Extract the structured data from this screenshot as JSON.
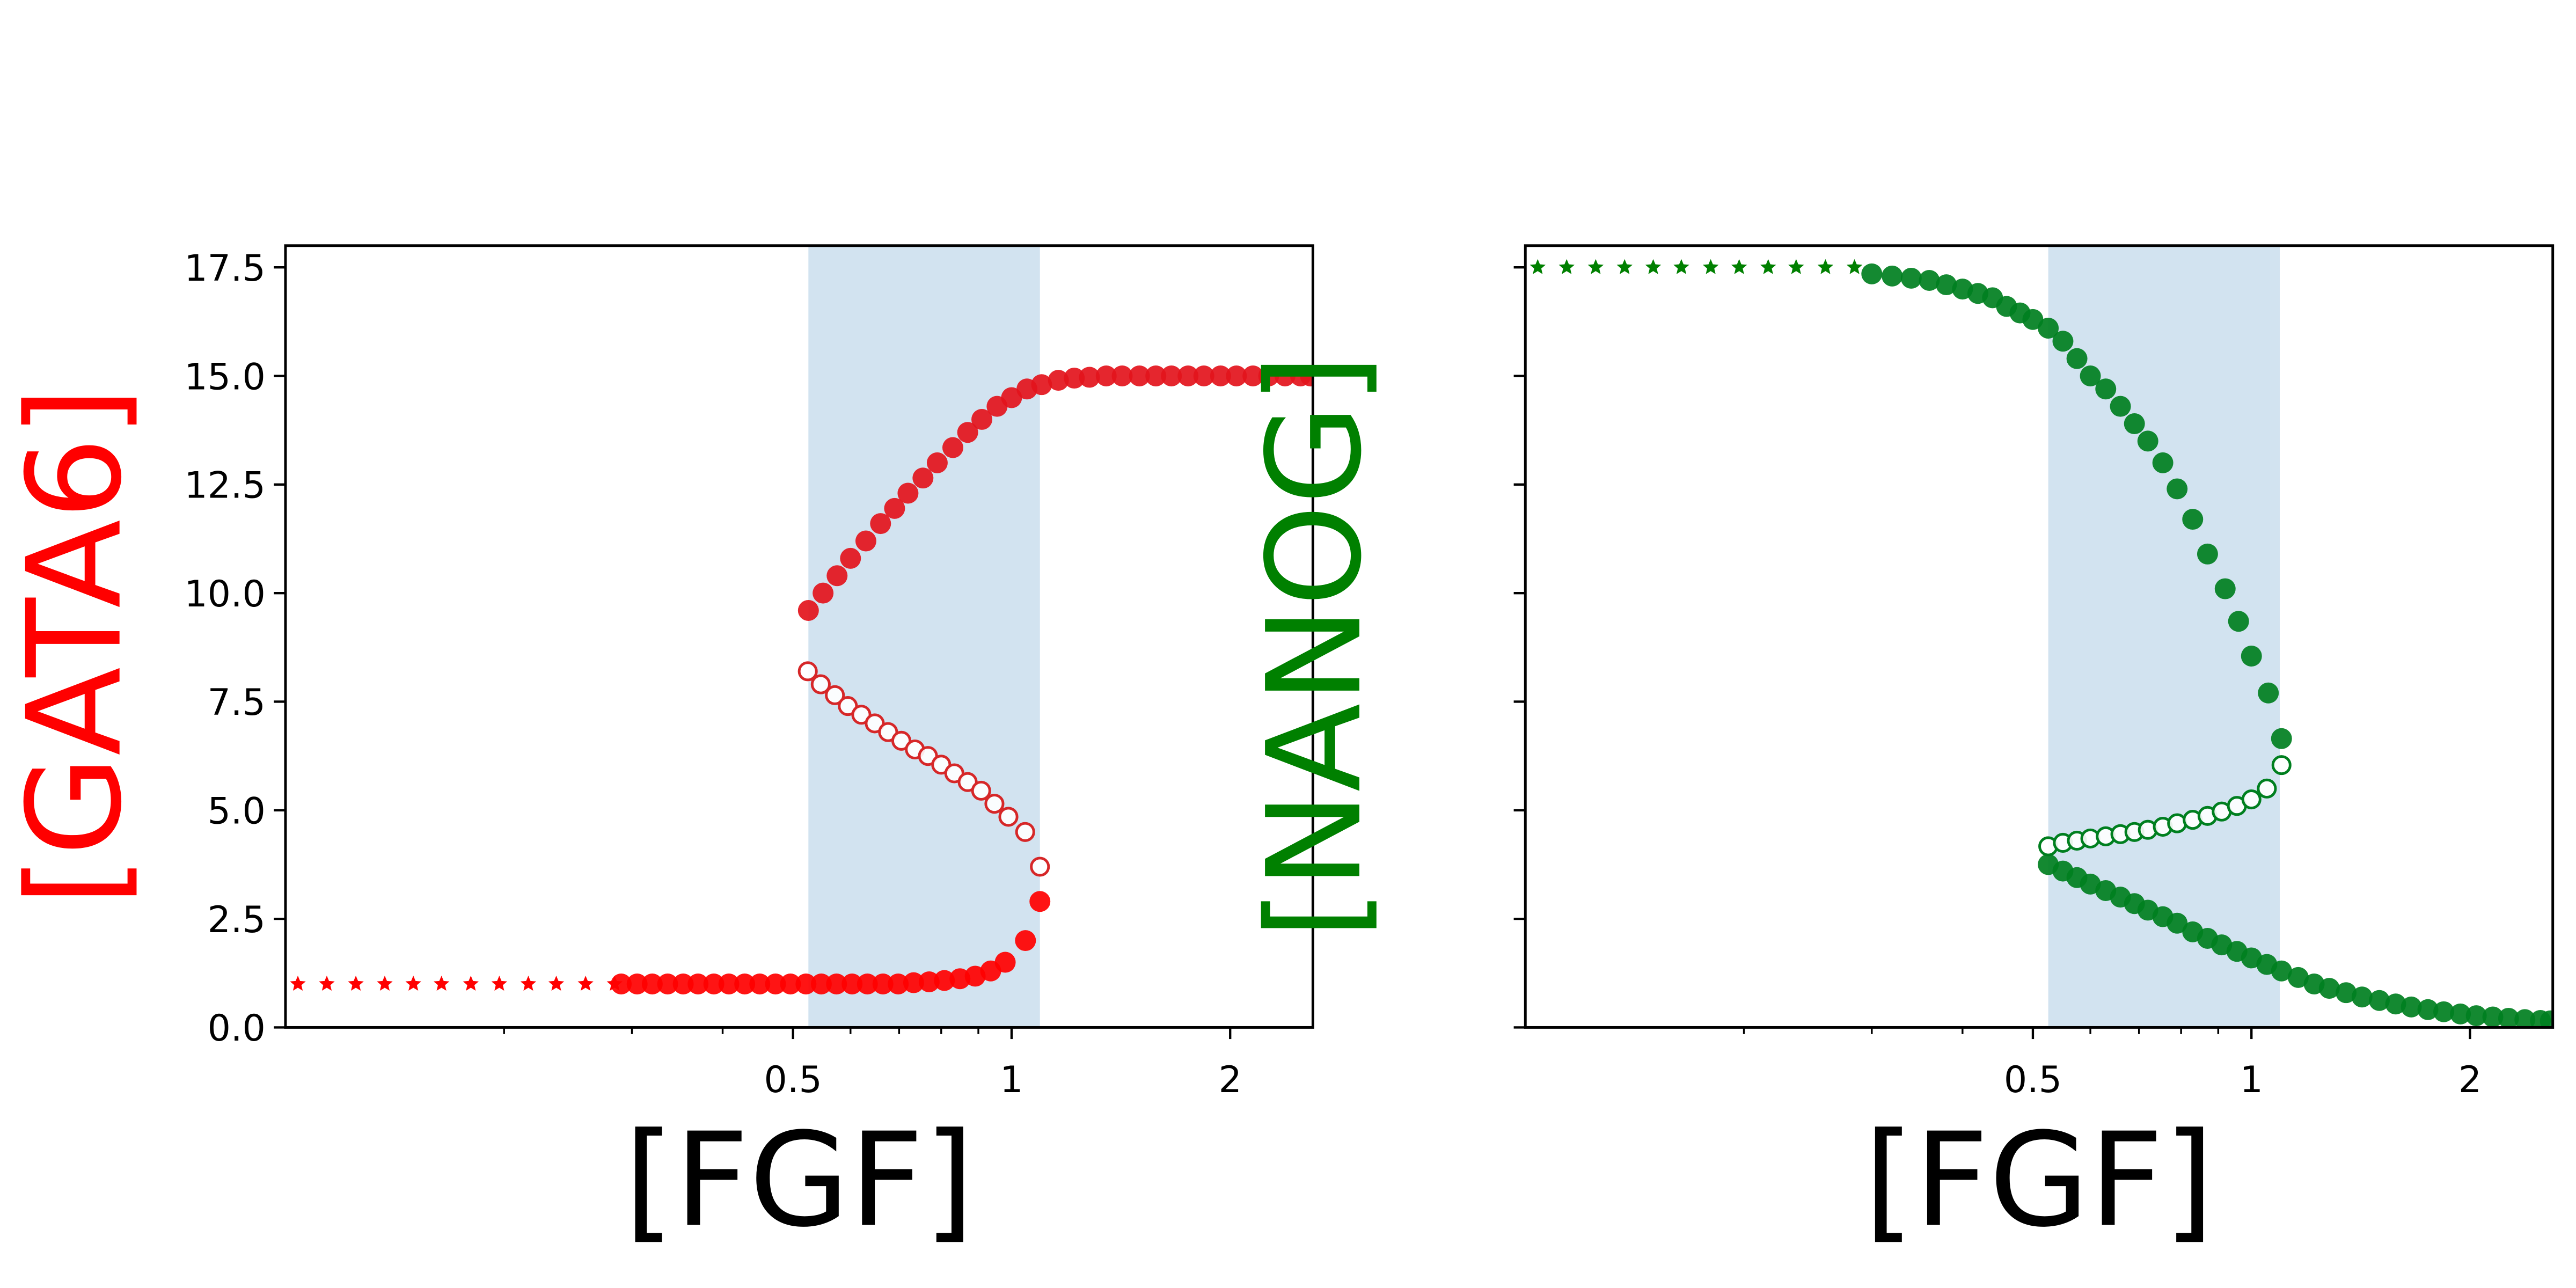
{
  "chart_data": [
    {
      "type": "scatter",
      "xlabel": "[FGF]",
      "ylabel": "[GATA6]",
      "ylabel_color": "#ff0000",
      "xscale": "log",
      "xlim": [
        0.1,
        2.6
      ],
      "ylim": [
        0,
        18
      ],
      "xticks": [
        0.5,
        1,
        2
      ],
      "xminor_ticks": [
        0.2,
        0.3,
        0.4,
        0.6,
        0.7,
        0.8,
        0.9
      ],
      "yticks": [
        {
          "value": 0,
          "label": "0.0"
        },
        2.5,
        {
          "value": 5,
          "label": "5.0"
        },
        7.5,
        {
          "value": 10,
          "label": "10.0"
        },
        12.5,
        {
          "value": 15,
          "label": "15.0"
        },
        17.5
      ],
      "show_ytick_labels": true,
      "span": [
        0.525,
        1.094
      ],
      "span_color": "#d2e3f0",
      "series": [
        {
          "marker": "star",
          "color": "#ff0000",
          "filled": true,
          "x": [
            0.104,
            0.114,
            0.125,
            0.137,
            0.15,
            0.164,
            0.18,
            0.197,
            0.216,
            0.236,
            0.259,
            0.284
          ],
          "values": [
            1,
            1,
            1,
            1,
            1,
            1,
            1,
            1,
            1,
            1,
            1,
            1
          ]
        },
        {
          "marker": "circle",
          "color": "#ff0000",
          "filled": true,
          "x": [
            0.29,
            0.305,
            0.32,
            0.336,
            0.353,
            0.37,
            0.389,
            0.408,
            0.429,
            0.45,
            0.473,
            0.496,
            0.521,
            0.547,
            0.574,
            0.603,
            0.633,
            0.665,
            0.698,
            0.733,
            0.77,
            0.808,
            0.849,
            0.891,
            0.936,
            0.98,
            1.045,
            1.094
          ],
          "values": [
            1,
            1,
            1,
            1,
            1,
            1,
            1,
            1,
            1,
            1,
            1,
            1,
            1,
            1,
            1,
            1,
            1,
            1,
            1,
            1.03,
            1.05,
            1.08,
            1.12,
            1.18,
            1.3,
            1.5,
            2.0,
            2.9
          ]
        },
        {
          "marker": "circle",
          "color": "#e3141c",
          "filled": true,
          "x": [
            0.525,
            0.55,
            0.575,
            0.6,
            0.63,
            0.66,
            0.69,
            0.72,
            0.755,
            0.79,
            0.83,
            0.87,
            0.91,
            0.955,
            1.0,
            1.05,
            1.1,
            1.16,
            1.22,
            1.28,
            1.35,
            1.42,
            1.5,
            1.58,
            1.66,
            1.75,
            1.84,
            1.94,
            2.04,
            2.15,
            2.26,
            2.38,
            2.5,
            2.58
          ],
          "values": [
            9.6,
            10.0,
            10.4,
            10.8,
            11.2,
            11.6,
            11.95,
            12.3,
            12.65,
            13.0,
            13.35,
            13.7,
            14.0,
            14.3,
            14.5,
            14.7,
            14.8,
            14.9,
            14.95,
            14.97,
            15,
            15,
            15,
            15,
            15,
            15,
            15,
            15,
            15,
            15,
            15,
            15,
            15,
            15
          ]
        },
        {
          "marker": "circle",
          "color": "#d62728",
          "filled": false,
          "x": [
            0.524,
            0.546,
            0.571,
            0.595,
            0.621,
            0.648,
            0.676,
            0.705,
            0.736,
            0.767,
            0.8,
            0.834,
            0.87,
            0.908,
            0.947,
            0.99,
            1.044,
            1.094
          ],
          "values": [
            8.2,
            7.9,
            7.65,
            7.4,
            7.2,
            7.0,
            6.8,
            6.6,
            6.4,
            6.25,
            6.05,
            5.85,
            5.65,
            5.45,
            5.15,
            4.85,
            4.5,
            3.7
          ]
        }
      ]
    },
    {
      "type": "scatter",
      "xlabel": "[FGF]",
      "ylabel": "[NANOG]",
      "ylabel_color": "#008000",
      "xscale": "log",
      "xlim": [
        0.1,
        2.6
      ],
      "ylim": [
        0,
        18
      ],
      "xticks": [
        0.5,
        1,
        2
      ],
      "xminor_ticks": [
        0.2,
        0.3,
        0.4,
        0.6,
        0.7,
        0.8,
        0.9
      ],
      "yticks": [
        0,
        2.5,
        5,
        7.5,
        10,
        12.5,
        15,
        17.5
      ],
      "show_ytick_labels": false,
      "span": [
        0.525,
        1.094
      ],
      "span_color": "#d2e3f0",
      "series": [
        {
          "marker": "star",
          "color": "#008000",
          "filled": true,
          "x": [
            0.104,
            0.114,
            0.125,
            0.137,
            0.15,
            0.164,
            0.18,
            0.197,
            0.216,
            0.236,
            0.259,
            0.284
          ],
          "values": [
            17.5,
            17.5,
            17.5,
            17.5,
            17.5,
            17.5,
            17.5,
            17.5,
            17.5,
            17.5,
            17.5,
            17.5
          ]
        },
        {
          "marker": "circle",
          "color": "#007f1f",
          "filled": true,
          "x": [
            0.3,
            0.32,
            0.34,
            0.36,
            0.38,
            0.4,
            0.42,
            0.44,
            0.46,
            0.48,
            0.5,
            0.525,
            0.55,
            0.575,
            0.6,
            0.63,
            0.66,
            0.69,
            0.72,
            0.755,
            0.79,
            0.83,
            0.87,
            0.92,
            0.96,
            1.0,
            1.055,
            1.1
          ],
          "values": [
            17.35,
            17.3,
            17.25,
            17.2,
            17.1,
            17.0,
            16.9,
            16.8,
            16.6,
            16.45,
            16.3,
            16.1,
            15.8,
            15.4,
            15.0,
            14.7,
            14.3,
            13.9,
            13.5,
            13.0,
            12.4,
            11.7,
            10.9,
            10.1,
            9.35,
            8.55,
            7.7,
            6.65
          ]
        },
        {
          "marker": "circle",
          "color": "#007f1f",
          "filled": false,
          "x": [
            0.525,
            0.55,
            0.575,
            0.6,
            0.63,
            0.66,
            0.69,
            0.72,
            0.755,
            0.79,
            0.83,
            0.87,
            0.91,
            0.955,
            1.0,
            1.05,
            1.1
          ],
          "values": [
            4.17,
            4.25,
            4.3,
            4.35,
            4.4,
            4.45,
            4.5,
            4.55,
            4.62,
            4.7,
            4.78,
            4.87,
            4.97,
            5.1,
            5.25,
            5.5,
            6.04
          ]
        },
        {
          "marker": "circle",
          "color": "#007f1f",
          "filled": true,
          "x": [
            0.525,
            0.55,
            0.575,
            0.6,
            0.63,
            0.66,
            0.69,
            0.72,
            0.755,
            0.79,
            0.83,
            0.87,
            0.91,
            0.955,
            1.0,
            1.05,
            1.1,
            1.16,
            1.22,
            1.28,
            1.35,
            1.42,
            1.5,
            1.58,
            1.66,
            1.75,
            1.84,
            1.94,
            2.04,
            2.15,
            2.26,
            2.38,
            2.5,
            2.58
          ],
          "values": [
            3.75,
            3.6,
            3.45,
            3.3,
            3.15,
            3.0,
            2.85,
            2.7,
            2.55,
            2.4,
            2.2,
            2.05,
            1.9,
            1.75,
            1.6,
            1.45,
            1.3,
            1.15,
            1.0,
            0.9,
            0.8,
            0.7,
            0.62,
            0.54,
            0.47,
            0.41,
            0.36,
            0.31,
            0.27,
            0.24,
            0.21,
            0.18,
            0.16,
            0.15
          ]
        }
      ]
    }
  ]
}
